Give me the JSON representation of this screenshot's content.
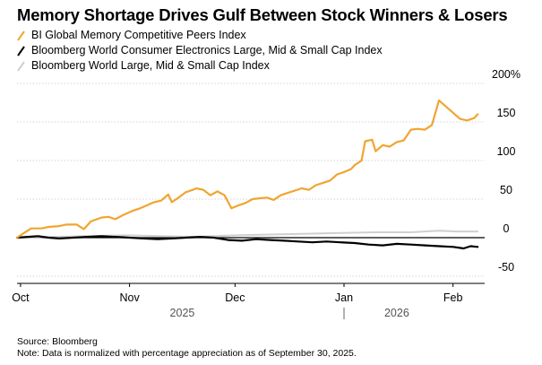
{
  "title": "Memory Shortage Drives Gulf Between Stock Winners & Losers",
  "legend": [
    {
      "label": "BI Global Memory Competitive Peers Index",
      "color": "#f0a530"
    },
    {
      "label": "Bloomberg World Consumer Electronics Large, Mid & Small Cap Index",
      "color": "#000000"
    },
    {
      "label": "Bloomberg World Large, Mid & Small Cap Index",
      "color": "#cfcfcf"
    }
  ],
  "footer": {
    "source": "Source: Bloomberg",
    "note": "Note: Data is normalized with percentage appreciation as of September 30, 2025."
  },
  "chart_data": {
    "type": "line",
    "title": "Memory Shortage Drives Gulf Between Stock Winners & Losers",
    "x_ticks": [
      {
        "label": "Oct",
        "date": "2025-10-01"
      },
      {
        "label": "Nov",
        "date": "2025-11-01"
      },
      {
        "label": "Dec",
        "date": "2025-12-01"
      },
      {
        "label": "Jan",
        "date": "2026-01-01"
      },
      {
        "label": "Feb",
        "date": "2026-02-01"
      }
    ],
    "year_labels": [
      {
        "label": "2025",
        "date": "2025-11-16"
      },
      {
        "label": "2026",
        "date": "2026-01-16"
      }
    ],
    "year_divider_date": "2026-01-01",
    "y_ticks": [
      {
        "value": 200,
        "label": "200%"
      },
      {
        "value": 150,
        "label": "150"
      },
      {
        "value": 100,
        "label": "100"
      },
      {
        "value": 50,
        "label": "50"
      },
      {
        "value": 0,
        "label": "0"
      },
      {
        "value": -50,
        "label": "-50"
      }
    ],
    "xlim": [
      "2025-09-30",
      "2026-02-10"
    ],
    "ylim": [
      -50,
      200
    ],
    "grid": "horizontal",
    "legend_position": "top-left",
    "series": [
      {
        "name": "BI Global Memory Competitive Peers Index",
        "color": "#f0a530",
        "points": [
          [
            "2025-09-30",
            0
          ],
          [
            "2025-10-02",
            6
          ],
          [
            "2025-10-04",
            12
          ],
          [
            "2025-10-07",
            12
          ],
          [
            "2025-10-09",
            14
          ],
          [
            "2025-10-12",
            15
          ],
          [
            "2025-10-14",
            17
          ],
          [
            "2025-10-17",
            17
          ],
          [
            "2025-10-19",
            11
          ],
          [
            "2025-10-21",
            21
          ],
          [
            "2025-10-24",
            26
          ],
          [
            "2025-10-26",
            27
          ],
          [
            "2025-10-28",
            24
          ],
          [
            "2025-10-30",
            29
          ],
          [
            "2025-11-02",
            35
          ],
          [
            "2025-11-04",
            38
          ],
          [
            "2025-11-06",
            42
          ],
          [
            "2025-11-08",
            46
          ],
          [
            "2025-11-10",
            48
          ],
          [
            "2025-11-12",
            56
          ],
          [
            "2025-11-13",
            46
          ],
          [
            "2025-11-15",
            52
          ],
          [
            "2025-11-17",
            59
          ],
          [
            "2025-11-19",
            62
          ],
          [
            "2025-11-20",
            64
          ],
          [
            "2025-11-22",
            62
          ],
          [
            "2025-11-24",
            55
          ],
          [
            "2025-11-26",
            60
          ],
          [
            "2025-11-28",
            55
          ],
          [
            "2025-11-30",
            38
          ],
          [
            "2025-12-02",
            42
          ],
          [
            "2025-12-04",
            45
          ],
          [
            "2025-12-06",
            50
          ],
          [
            "2025-12-08",
            51
          ],
          [
            "2025-12-10",
            52
          ],
          [
            "2025-12-12",
            49
          ],
          [
            "2025-12-14",
            55
          ],
          [
            "2025-12-16",
            58
          ],
          [
            "2025-12-18",
            61
          ],
          [
            "2025-12-20",
            64
          ],
          [
            "2025-12-22",
            62
          ],
          [
            "2025-12-24",
            68
          ],
          [
            "2025-12-26",
            71
          ],
          [
            "2025-12-28",
            74
          ],
          [
            "2025-12-30",
            82
          ],
          [
            "2026-01-01",
            85
          ],
          [
            "2026-01-03",
            89
          ],
          [
            "2026-01-04",
            94
          ],
          [
            "2026-01-06",
            100
          ],
          [
            "2026-01-07",
            125
          ],
          [
            "2026-01-09",
            127
          ],
          [
            "2026-01-10",
            112
          ],
          [
            "2026-01-12",
            120
          ],
          [
            "2026-01-14",
            118
          ],
          [
            "2026-01-16",
            124
          ],
          [
            "2026-01-18",
            126
          ],
          [
            "2026-01-20",
            140
          ],
          [
            "2026-01-22",
            141
          ],
          [
            "2026-01-24",
            140
          ],
          [
            "2026-01-26",
            146
          ],
          [
            "2026-01-28",
            178
          ],
          [
            "2026-01-30",
            170
          ],
          [
            "2026-02-01",
            162
          ],
          [
            "2026-02-03",
            154
          ],
          [
            "2026-02-05",
            152
          ],
          [
            "2026-02-07",
            155
          ],
          [
            "2026-02-08",
            160
          ]
        ]
      },
      {
        "name": "Bloomberg World Consumer Electronics Large, Mid & Small Cap Index",
        "color": "#000000",
        "points": [
          [
            "2025-09-30",
            0
          ],
          [
            "2025-10-03",
            1
          ],
          [
            "2025-10-06",
            2
          ],
          [
            "2025-10-09",
            0
          ],
          [
            "2025-10-12",
            -1
          ],
          [
            "2025-10-16",
            0
          ],
          [
            "2025-10-20",
            1
          ],
          [
            "2025-10-24",
            2
          ],
          [
            "2025-10-28",
            1
          ],
          [
            "2025-11-01",
            0
          ],
          [
            "2025-11-05",
            -1
          ],
          [
            "2025-11-09",
            -2
          ],
          [
            "2025-11-13",
            -1
          ],
          [
            "2025-11-17",
            0
          ],
          [
            "2025-11-21",
            1
          ],
          [
            "2025-11-25",
            0
          ],
          [
            "2025-11-29",
            -3
          ],
          [
            "2025-12-03",
            -4
          ],
          [
            "2025-12-07",
            -2
          ],
          [
            "2025-12-11",
            -3
          ],
          [
            "2025-12-15",
            -4
          ],
          [
            "2025-12-19",
            -5
          ],
          [
            "2025-12-23",
            -6
          ],
          [
            "2025-12-27",
            -5
          ],
          [
            "2025-12-31",
            -6
          ],
          [
            "2026-01-04",
            -7
          ],
          [
            "2026-01-08",
            -9
          ],
          [
            "2026-01-12",
            -10
          ],
          [
            "2026-01-16",
            -8
          ],
          [
            "2026-01-20",
            -9
          ],
          [
            "2026-01-24",
            -10
          ],
          [
            "2026-01-28",
            -11
          ],
          [
            "2026-02-01",
            -12
          ],
          [
            "2026-02-04",
            -14
          ],
          [
            "2026-02-06",
            -11
          ],
          [
            "2026-02-08",
            -12
          ]
        ]
      },
      {
        "name": "Bloomberg World Large, Mid & Small Cap Index",
        "color": "#cfcfcf",
        "points": [
          [
            "2025-09-30",
            0
          ],
          [
            "2025-10-10",
            1
          ],
          [
            "2025-10-20",
            2
          ],
          [
            "2025-10-31",
            3
          ],
          [
            "2025-11-10",
            2
          ],
          [
            "2025-11-20",
            1
          ],
          [
            "2025-12-01",
            3
          ],
          [
            "2025-12-10",
            4
          ],
          [
            "2025-12-20",
            5
          ],
          [
            "2025-12-31",
            6
          ],
          [
            "2026-01-10",
            7
          ],
          [
            "2026-01-20",
            7
          ],
          [
            "2026-01-28",
            9
          ],
          [
            "2026-02-02",
            8
          ],
          [
            "2026-02-08",
            8
          ]
        ]
      }
    ]
  }
}
